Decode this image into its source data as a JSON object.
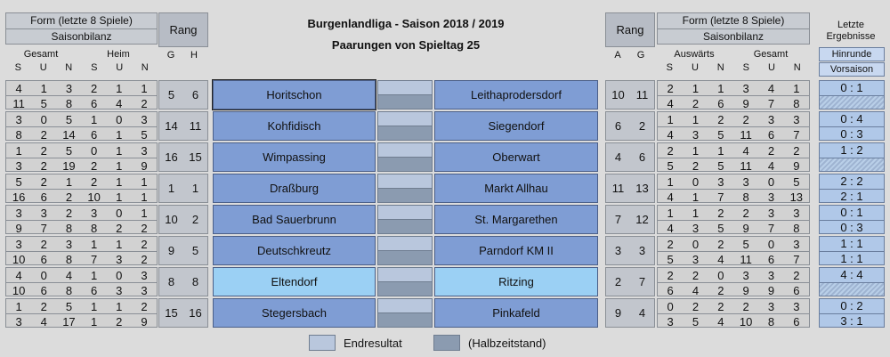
{
  "header": {
    "left_form": "Form (letzte 8 Spiele)",
    "left_season": "Saisonbilanz",
    "left_rang": "Rang",
    "right_rang": "Rang",
    "right_form": "Form (letzte 8 Spiele)",
    "right_season": "Saisonbilanz",
    "title": "Burgenlandliga  -  Saison 2018 / 2019",
    "subtitle": "Paarungen von Spieltag 25",
    "letzte_1": "Letzte",
    "letzte_2": "Ergebnisse",
    "hinrunde": "Hinrunde",
    "vorsaison": "Vorsaison"
  },
  "columns": {
    "gesamt": "Gesamt",
    "heim": "Heim",
    "auswaerts": "Auswärts",
    "s": "S",
    "u": "U",
    "n": "N",
    "g": "G",
    "h": "H",
    "a": "A"
  },
  "legend": {
    "endresultat": "Endresultat",
    "halbzeit": "(Halbzeitstand)"
  },
  "colors": {
    "team_bg": "#7f9dd4",
    "team_highlight": "#9bd0f4",
    "endresultat": "#b9c7dd",
    "halbzeitstand": "#8b9bb0"
  },
  "matches": [
    {
      "home": "Horitschon",
      "away": "Leithaprodersdorf",
      "home_form": [
        "4",
        "1",
        "3",
        "2",
        "1",
        "1"
      ],
      "home_season": [
        "11",
        "5",
        "8",
        "6",
        "4",
        "2"
      ],
      "rank_g": "5",
      "rank_h": "6",
      "rank_a": "10",
      "rank_ag": "11",
      "away_form": [
        "2",
        "1",
        "1",
        "3",
        "4",
        "1"
      ],
      "away_season": [
        "4",
        "2",
        "6",
        "9",
        "7",
        "8"
      ],
      "hin": "0 : 1",
      "vor": ""
    },
    {
      "home": "Kohfidisch",
      "away": "Siegendorf",
      "home_form": [
        "3",
        "0",
        "5",
        "1",
        "0",
        "3"
      ],
      "home_season": [
        "8",
        "2",
        "14",
        "6",
        "1",
        "5"
      ],
      "rank_g": "14",
      "rank_h": "11",
      "rank_a": "6",
      "rank_ag": "2",
      "away_form": [
        "1",
        "1",
        "2",
        "2",
        "3",
        "3"
      ],
      "away_season": [
        "4",
        "3",
        "5",
        "11",
        "6",
        "7"
      ],
      "hin": "0 : 4",
      "vor": "0 : 3"
    },
    {
      "home": "Wimpassing",
      "away": "Oberwart",
      "home_form": [
        "1",
        "2",
        "5",
        "0",
        "1",
        "3"
      ],
      "home_season": [
        "3",
        "2",
        "19",
        "2",
        "1",
        "9"
      ],
      "rank_g": "16",
      "rank_h": "15",
      "rank_a": "4",
      "rank_ag": "6",
      "away_form": [
        "2",
        "1",
        "1",
        "4",
        "2",
        "2"
      ],
      "away_season": [
        "5",
        "2",
        "5",
        "11",
        "4",
        "9"
      ],
      "hin": "1 : 2",
      "vor": ""
    },
    {
      "home": "Draßburg",
      "away": "Markt Allhau",
      "home_form": [
        "5",
        "2",
        "1",
        "2",
        "1",
        "1"
      ],
      "home_season": [
        "16",
        "6",
        "2",
        "10",
        "1",
        "1"
      ],
      "rank_g": "1",
      "rank_h": "1",
      "rank_a": "11",
      "rank_ag": "13",
      "away_form": [
        "1",
        "0",
        "3",
        "3",
        "0",
        "5"
      ],
      "away_season": [
        "4",
        "1",
        "7",
        "8",
        "3",
        "13"
      ],
      "hin": "2 : 2",
      "vor": "2 : 1"
    },
    {
      "home": "Bad Sauerbrunn",
      "away": "St. Margarethen",
      "home_form": [
        "3",
        "3",
        "2",
        "3",
        "0",
        "1"
      ],
      "home_season": [
        "9",
        "7",
        "8",
        "8",
        "2",
        "2"
      ],
      "rank_g": "10",
      "rank_h": "2",
      "rank_a": "7",
      "rank_ag": "12",
      "away_form": [
        "1",
        "1",
        "2",
        "2",
        "3",
        "3"
      ],
      "away_season": [
        "4",
        "3",
        "5",
        "9",
        "7",
        "8"
      ],
      "hin": "0 : 1",
      "vor": "0 : 3"
    },
    {
      "home": "Deutschkreutz",
      "away": "Parndorf KM II",
      "home_form": [
        "3",
        "2",
        "3",
        "1",
        "1",
        "2"
      ],
      "home_season": [
        "10",
        "6",
        "8",
        "7",
        "3",
        "2"
      ],
      "rank_g": "9",
      "rank_h": "5",
      "rank_a": "3",
      "rank_ag": "3",
      "away_form": [
        "2",
        "0",
        "2",
        "5",
        "0",
        "3"
      ],
      "away_season": [
        "5",
        "3",
        "4",
        "11",
        "6",
        "7"
      ],
      "hin": "1 : 1",
      "vor": "1 : 1"
    },
    {
      "home": "Eltendorf",
      "away": "Ritzing",
      "home_form": [
        "4",
        "0",
        "4",
        "1",
        "0",
        "3"
      ],
      "home_season": [
        "10",
        "6",
        "8",
        "6",
        "3",
        "3"
      ],
      "rank_g": "8",
      "rank_h": "8",
      "rank_a": "2",
      "rank_ag": "7",
      "away_form": [
        "2",
        "2",
        "0",
        "3",
        "3",
        "2"
      ],
      "away_season": [
        "6",
        "4",
        "2",
        "9",
        "9",
        "6"
      ],
      "hin": "4 : 4",
      "vor": ""
    },
    {
      "home": "Stegersbach",
      "away": "Pinkafeld",
      "home_form": [
        "1",
        "2",
        "5",
        "1",
        "1",
        "2"
      ],
      "home_season": [
        "3",
        "4",
        "17",
        "1",
        "2",
        "9"
      ],
      "rank_g": "15",
      "rank_h": "16",
      "rank_a": "9",
      "rank_ag": "4",
      "away_form": [
        "0",
        "2",
        "2",
        "2",
        "3",
        "3"
      ],
      "away_season": [
        "3",
        "5",
        "4",
        "10",
        "8",
        "6"
      ],
      "hin": "0 : 2",
      "vor": "3 : 1"
    }
  ]
}
